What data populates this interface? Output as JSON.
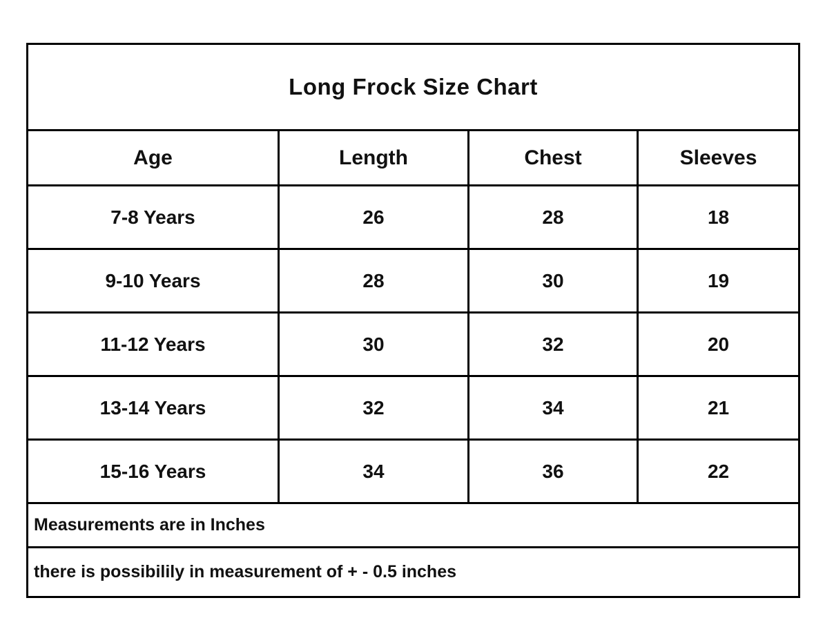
{
  "size_table": {
    "title": "Long Frock Size Chart",
    "columns": [
      "Age",
      "Length",
      "Chest",
      "Sleeves"
    ],
    "rows": [
      {
        "age": "7-8 Years",
        "length": "26",
        "chest": "28",
        "sleeves": "18"
      },
      {
        "age": "9-10 Years",
        "length": "28",
        "chest": "30",
        "sleeves": "19"
      },
      {
        "age": "11-12 Years",
        "length": "30",
        "chest": "32",
        "sleeves": "20"
      },
      {
        "age": "13-14 Years",
        "length": "32",
        "chest": "34",
        "sleeves": "21"
      },
      {
        "age": "15-16 Years",
        "length": "34",
        "chest": "36",
        "sleeves": "22"
      }
    ],
    "notes": {
      "units": "Measurements are in Inches",
      "tolerance": "there is possibilily in measurement of + - 0.5 inches"
    }
  },
  "colors": {
    "border": "#000000",
    "background": "#ffffff",
    "text": "#111111"
  }
}
